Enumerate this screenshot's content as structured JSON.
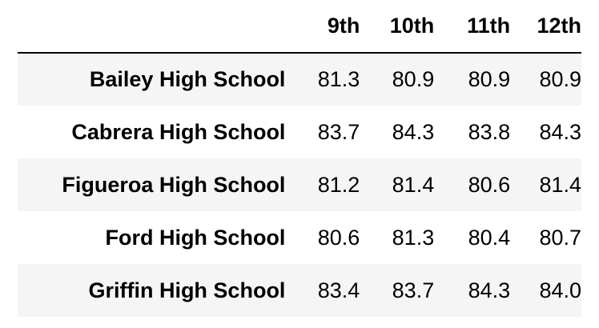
{
  "table": {
    "columns": [
      "9th",
      "10th",
      "11th",
      "12th"
    ],
    "rows": [
      {
        "school": "Bailey High School",
        "values": [
          "81.3",
          "80.9",
          "80.9",
          "80.9"
        ]
      },
      {
        "school": "Cabrera High School",
        "values": [
          "83.7",
          "84.3",
          "83.8",
          "84.3"
        ]
      },
      {
        "school": "Figueroa High School",
        "values": [
          "81.2",
          "81.4",
          "80.6",
          "81.4"
        ]
      },
      {
        "school": "Ford High School",
        "values": [
          "80.6",
          "81.3",
          "80.4",
          "80.7"
        ]
      },
      {
        "school": "Griffin High School",
        "values": [
          "83.4",
          "83.7",
          "84.3",
          "84.0"
        ]
      }
    ]
  },
  "colors": {
    "stripe": "#f5f5f5",
    "text": "#000000",
    "rule": "#000000"
  }
}
